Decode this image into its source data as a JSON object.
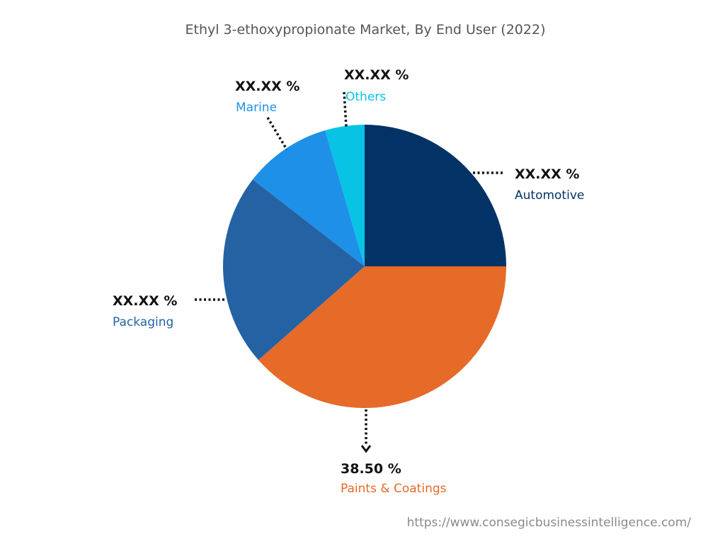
{
  "chart_data": {
    "type": "pie",
    "title": "Ethyl 3-ethoxypropionate Market, By End  User (2022)",
    "slices": [
      {
        "label": "Automotive",
        "value_label": "XX.XX %",
        "value": 25.0,
        "color": "#033366"
      },
      {
        "label": "Paints & Coatings",
        "value_label": "38.50 %",
        "value": 38.5,
        "color": "#e66a28"
      },
      {
        "label": "Packaging",
        "value_label": "XX.XX %",
        "value": 22.0,
        "color": "#2462a4"
      },
      {
        "label": "Marine",
        "value_label": "XX.XX %",
        "value": 10.0,
        "color": "#1e90e8"
      },
      {
        "label": "Others",
        "value_label": "XX.XX %",
        "value": 4.5,
        "color": "#08c3e4"
      }
    ],
    "label_colors": {
      "Automotive": "#033366",
      "Paints & Coatings": "#e66a28",
      "Packaging": "#2462a4",
      "Marine": "#1e90e8",
      "Others": "#08c3e4"
    }
  },
  "source": "https://www.consegicbusinessintelligence.com/"
}
